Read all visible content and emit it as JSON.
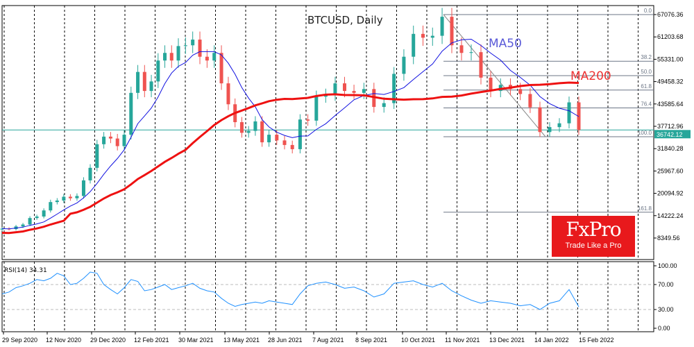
{
  "chart_data": {
    "type": "candlestick",
    "title": "BTCUSD, Daily",
    "symbol": "BTCUSD",
    "timeframe": "Daily",
    "y_ticks": [
      "67076.36",
      "61203.68",
      "55331.00",
      "49458.32",
      "43585.64",
      "37712.96",
      "31840.28",
      "25967.60",
      "20094.92",
      "14222.24",
      "8349.56"
    ],
    "ylim": [
      4000,
      70500
    ],
    "x_tick_labels": [
      "29 Sep 2020",
      "12 Nov 2020",
      "29 Dec 2020",
      "12 Feb 2021",
      "30 Mar 2021",
      "13 May 2021",
      "28 Jun 2021",
      "7 Aug 2021",
      "8 Sep 2021",
      "10 Oct 2021",
      "11 Nov 2021",
      "13 Dec 2021",
      "14 Jan 2022",
      "15 Feb 2022"
    ],
    "current_price": "36742.12",
    "colors": {
      "up": "#26a69a",
      "down": "#ef5350",
      "ma50": "#1010e0",
      "ma200": "#ee1111",
      "rsi": "#1e90ff",
      "current": "#26a69a",
      "fib": "#6b7585"
    },
    "dates": [
      "2020-09-29",
      "2020-10-06",
      "2020-10-13",
      "2020-10-20",
      "2020-10-27",
      "2020-11-03",
      "2020-11-10",
      "2020-11-17",
      "2020-11-24",
      "2020-12-01",
      "2020-12-08",
      "2020-12-15",
      "2020-12-22",
      "2020-12-29",
      "2021-01-05",
      "2021-01-12",
      "2021-01-19",
      "2021-01-26",
      "2021-02-02",
      "2021-02-09",
      "2021-02-16",
      "2021-02-23",
      "2021-03-02",
      "2021-03-09",
      "2021-03-16",
      "2021-03-23",
      "2021-03-30",
      "2021-04-06",
      "2021-04-13",
      "2021-04-20",
      "2021-04-27",
      "2021-05-04",
      "2021-05-11",
      "2021-05-18",
      "2021-05-25",
      "2021-06-01",
      "2021-06-08",
      "2021-06-15",
      "2021-06-22",
      "2021-06-29",
      "2021-07-06",
      "2021-07-13",
      "2021-07-20",
      "2021-07-27",
      "2021-08-03",
      "2021-08-10",
      "2021-08-17",
      "2021-08-24",
      "2021-08-31",
      "2021-09-07",
      "2021-09-14",
      "2021-09-21",
      "2021-09-28",
      "2021-10-05",
      "2021-10-12",
      "2021-10-19",
      "2021-10-26",
      "2021-11-02",
      "2021-11-09",
      "2021-11-16",
      "2021-11-23",
      "2021-11-30",
      "2021-12-07",
      "2021-12-14",
      "2021-12-21",
      "2021-12-28",
      "2022-01-04",
      "2022-01-11",
      "2022-01-18",
      "2022-01-25",
      "2022-02-01",
      "2022-02-08",
      "2022-02-15"
    ],
    "close": [
      10800,
      10700,
      11400,
      11900,
      13600,
      14000,
      15600,
      17800,
      18200,
      19200,
      18800,
      19400,
      23500,
      26800,
      33000,
      35000,
      34500,
      32500,
      35500,
      46500,
      52000,
      47000,
      49500,
      55000,
      57000,
      55000,
      58800,
      59000,
      60500,
      56000,
      55000,
      57000,
      49000,
      43500,
      38800,
      36000,
      36500,
      39000,
      33500,
      35500,
      34000,
      32800,
      31700,
      39500,
      39200,
      45500,
      46000,
      49000,
      47000,
      46500,
      47500,
      42800,
      43800,
      51500,
      56000,
      62000,
      61000,
      61500,
      66500,
      59000,
      57000,
      57200,
      50500,
      47000,
      48600,
      47500,
      46200,
      42700,
      36200,
      37500,
      38500,
      44000,
      36742
    ],
    "indicators": {
      "ma50_label": "MA50",
      "ma200_label": "MA200",
      "rsi_label": "RSI(14) 34.31",
      "rsi_levels": [
        "100.00",
        "70.00",
        "30.00",
        "0.00"
      ],
      "rsi": [
        55,
        58,
        65,
        68,
        72,
        78,
        76,
        80,
        88,
        84,
        70,
        72,
        80,
        90,
        88,
        70,
        62,
        55,
        65,
        78,
        75,
        60,
        62,
        66,
        70,
        62,
        65,
        68,
        72,
        64,
        60,
        58,
        48,
        40,
        35,
        38,
        40,
        42,
        40,
        44,
        42,
        40,
        38,
        55,
        68,
        72,
        74,
        70,
        64,
        66,
        60,
        50,
        55,
        72,
        74,
        76,
        70,
        66,
        72,
        60,
        52,
        45,
        40,
        44,
        42,
        40,
        36,
        38,
        30,
        40,
        44,
        62,
        34.31
      ]
    },
    "fibonacci": {
      "high": 67076,
      "low": 34975,
      "levels": [
        "0.0",
        "38.2",
        "50.0",
        "61.8",
        "76.4",
        "100.0",
        "161.8"
      ]
    }
  },
  "logo": {
    "brand": "FxPro",
    "tagline": "Trade Like a Pro"
  }
}
